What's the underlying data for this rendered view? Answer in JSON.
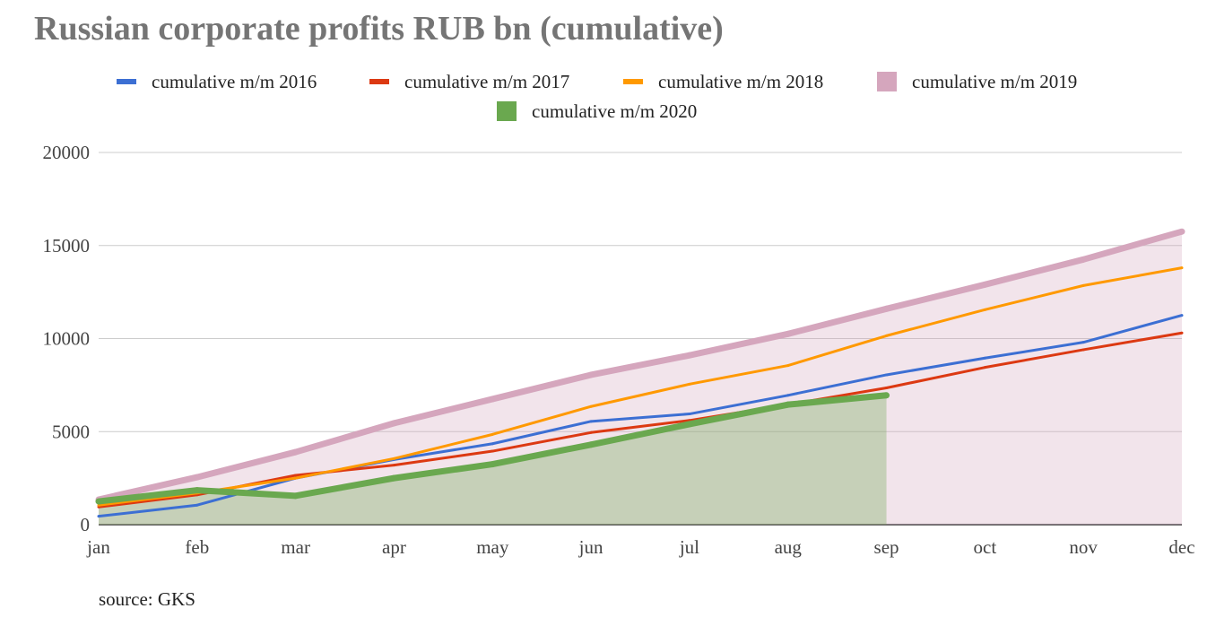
{
  "chart_data": {
    "type": "line",
    "title": "Russian corporate profits RUB bn (cumulative)",
    "source": "source: GKS",
    "xlabel": "",
    "ylabel": "",
    "categories": [
      "jan",
      "feb",
      "mar",
      "apr",
      "may",
      "jun",
      "jul",
      "aug",
      "sep",
      "oct",
      "nov",
      "dec"
    ],
    "ylim": [
      0,
      20000
    ],
    "yticks": [
      "0",
      "5000",
      "10000",
      "15000",
      "20000"
    ],
    "grid": true,
    "legend_position": "top",
    "series": [
      {
        "name": "cumulative m/m 2016",
        "kind": "line",
        "color": "#3c6fd3",
        "values": [
          450,
          1050,
          2500,
          3500,
          4350,
          5550,
          5950,
          6950,
          8050,
          8950,
          9800,
          11250
        ]
      },
      {
        "name": "cumulative m/m 2017",
        "kind": "line",
        "color": "#dc3912",
        "values": [
          950,
          1600,
          2650,
          3200,
          3950,
          4950,
          5600,
          6450,
          7350,
          8450,
          9400,
          10300
        ]
      },
      {
        "name": "cumulative m/m 2018",
        "kind": "line",
        "color": "#ff9900",
        "values": [
          1050,
          1700,
          2500,
          3550,
          4850,
          6350,
          7550,
          8550,
          10150,
          11550,
          12850,
          13800
        ]
      },
      {
        "name": "cumulative m/m 2019",
        "kind": "area",
        "color": "#d5a6bd",
        "values": [
          1350,
          2550,
          3900,
          5450,
          6750,
          8050,
          9100,
          10250,
          11600,
          12900,
          14250,
          15750
        ]
      },
      {
        "name": "cumulative m/m 2020",
        "kind": "area",
        "color": "#6aa84f",
        "values": [
          1250,
          1850,
          1550,
          2500,
          3250,
          4300,
          5400,
          6450,
          6950,
          null,
          null,
          null
        ]
      }
    ]
  }
}
